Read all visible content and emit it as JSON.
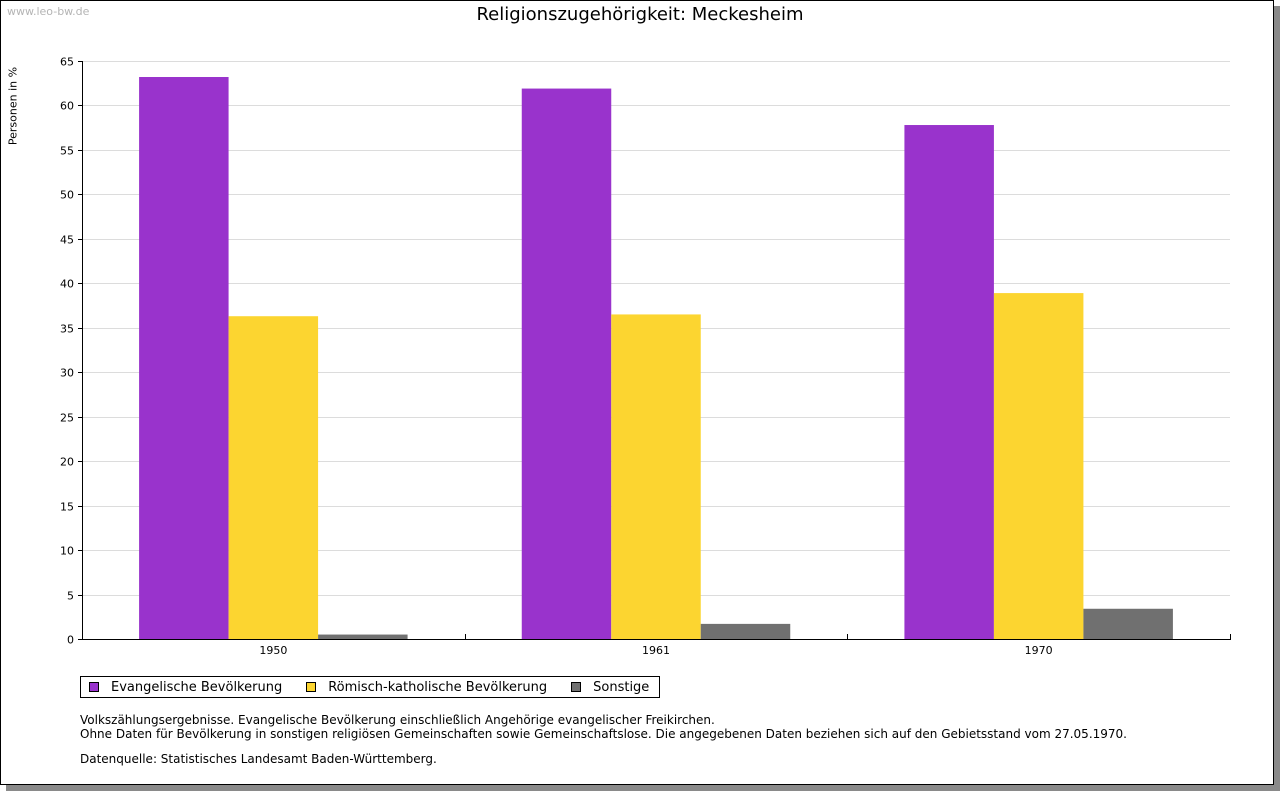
{
  "watermark": "www.leo-bw.de",
  "chart_data": {
    "type": "bar",
    "title": "Religionszugehörigkeit: Meckesheim",
    "xlabel": "",
    "ylabel": "Personen in %",
    "ylim": [
      0,
      65
    ],
    "ytick_step": 5,
    "categories": [
      "1950",
      "1961",
      "1970"
    ],
    "series": [
      {
        "name": "Evangelische Bevölkerung",
        "color": "#9933cc",
        "values": [
          63.2,
          61.9,
          57.8
        ]
      },
      {
        "name": "Römisch-katholische Bevölkerung",
        "color": "#fcd530",
        "values": [
          36.3,
          36.5,
          38.9
        ]
      },
      {
        "name": "Sonstige",
        "color": "#707070",
        "values": [
          0.5,
          1.7,
          3.4
        ]
      }
    ],
    "grid": true,
    "legend": "bottom-left"
  },
  "notes": [
    "Volkszählungsergebnisse. Evangelische Bevölkerung einschließlich Angehörige evangelischer Freikirchen.",
    "Ohne Daten für Bevölkerung in sonstigen religiösen Gemeinschaften sowie Gemeinschaftslose. Die angegebenen Daten beziehen sich auf den Gebietsstand vom 27.05.1970."
  ],
  "source": "Datenquelle: Statistisches Landesamt Baden-Württemberg."
}
